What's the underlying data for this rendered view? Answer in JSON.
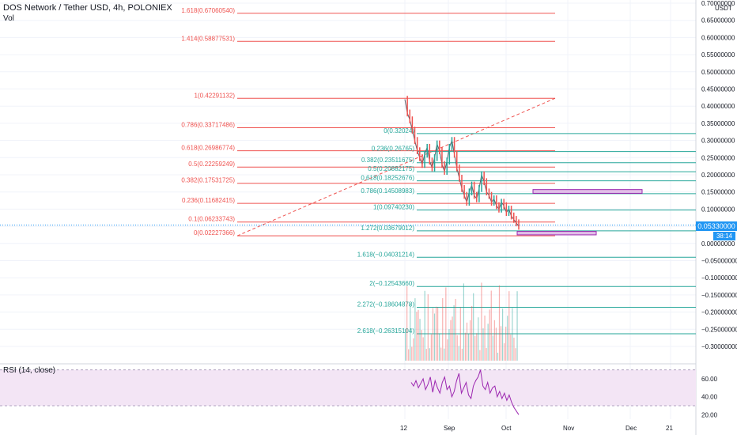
{
  "header": {
    "title": "DOS Network / Tether USD, 4h, POLONIEX",
    "vol_label": "Vol",
    "rsi_label": "RSI (14, close)",
    "price_unit": "USDT"
  },
  "current_price": "0.05330000",
  "countdown": "38:14",
  "colors": {
    "fib_red": "#ef5350",
    "fib_green": "#26a69a",
    "candle_up": "#26a69a",
    "candle_down": "#ef5350",
    "rsi_line": "#9c27b0",
    "rsi_band": "#f3e5f5",
    "box_fill": "#e1bee7",
    "accent": "#2196f3"
  },
  "chart_data": [
    {
      "type": "line",
      "title": "DOS Network / Tether USD, 4h, POLONIEX",
      "y_axis_ticks": [
        "0.70000000",
        "0.65000000",
        "0.60000000",
        "0.55000000",
        "0.50000000",
        "0.45000000",
        "0.40000000",
        "0.35000000",
        "0.30000000",
        "0.25000000",
        "0.20000000",
        "0.15000000",
        "0.10000000",
        "0.05000000",
        "0.00000000",
        "−0.05000000",
        "−0.10000000",
        "−0.15000000",
        "−0.20000000",
        "−0.25000000",
        "−0.30000000"
      ],
      "x_axis_ticks": [
        "12",
        "Sep",
        "Oct",
        "Nov",
        "Dec",
        "21"
      ],
      "ylim": [
        -0.33,
        0.71
      ],
      "fib_retracement_red": [
        {
          "label": "1.618(0.67060540)",
          "value": 0.6706054
        },
        {
          "label": "1.414(0.58877531)",
          "value": 0.58877531
        },
        {
          "label": "1(0.42291132)",
          "value": 0.42291132
        },
        {
          "label": "0.786(0.33717486)",
          "value": 0.33717486
        },
        {
          "label": "0.618(0.26986774)",
          "value": 0.26986774
        },
        {
          "label": "0.5(0.22259249)",
          "value": 0.22259249
        },
        {
          "label": "0.382(0.17531725)",
          "value": 0.17531725
        },
        {
          "label": "0.236(0.11682415)",
          "value": 0.11682415
        },
        {
          "label": "0.1(0.06233743)",
          "value": 0.06233743
        },
        {
          "label": "0(0.02227366)",
          "value": 0.02227366
        }
      ],
      "fib_retracement_green": [
        {
          "label": "0(0.32024)",
          "value": 0.32024
        },
        {
          "label": "0.236(0.26765)",
          "value": 0.26765
        },
        {
          "label": "0.382(0.23511675)",
          "value": 0.23511675
        },
        {
          "label": "0.5(0.20882175)",
          "value": 0.20882175
        },
        {
          "label": "0.618(0.18252676)",
          "value": 0.18252676
        },
        {
          "label": "0.786(0.14508983)",
          "value": 0.14508983
        },
        {
          "label": "1(0.09740230)",
          "value": 0.0974023
        },
        {
          "label": "1.272(0.03679012)",
          "value": 0.03679012
        },
        {
          "label": "1.618(−0.04031214)",
          "value": -0.04031214
        },
        {
          "label": "2(−0.12543660)",
          "value": -0.1254366
        },
        {
          "label": "2.272(−0.18604878)",
          "value": -0.18604878
        },
        {
          "label": "2.618(−0.26315104)",
          "value": -0.26315104
        }
      ],
      "price_series": [
        0.42,
        0.38,
        0.36,
        0.33,
        0.3,
        0.27,
        0.25,
        0.23,
        0.26,
        0.28,
        0.24,
        0.22,
        0.25,
        0.29,
        0.27,
        0.23,
        0.21,
        0.24,
        0.28,
        0.3,
        0.26,
        0.22,
        0.19,
        0.16,
        0.14,
        0.12,
        0.15,
        0.17,
        0.14,
        0.13,
        0.16,
        0.2,
        0.18,
        0.15,
        0.14,
        0.12,
        0.13,
        0.11,
        0.1,
        0.12,
        0.11,
        0.09,
        0.1,
        0.08,
        0.07,
        0.06,
        0.05
      ]
    },
    {
      "type": "line",
      "title": "RSI (14, close)",
      "y_axis_ticks": [
        "60.00",
        "40.00",
        "20.00"
      ],
      "ylim": [
        15,
        75
      ],
      "band": [
        30,
        70
      ],
      "values": [
        56,
        52,
        58,
        50,
        55,
        60,
        48,
        54,
        62,
        45,
        58,
        50,
        44,
        56,
        62,
        48,
        52,
        40,
        46,
        58,
        66,
        44,
        50,
        56,
        42,
        38,
        52,
        58,
        62,
        70,
        52,
        48,
        56,
        44,
        50,
        52,
        40,
        46,
        38,
        44,
        36,
        42,
        34,
        28,
        24,
        20
      ]
    }
  ]
}
